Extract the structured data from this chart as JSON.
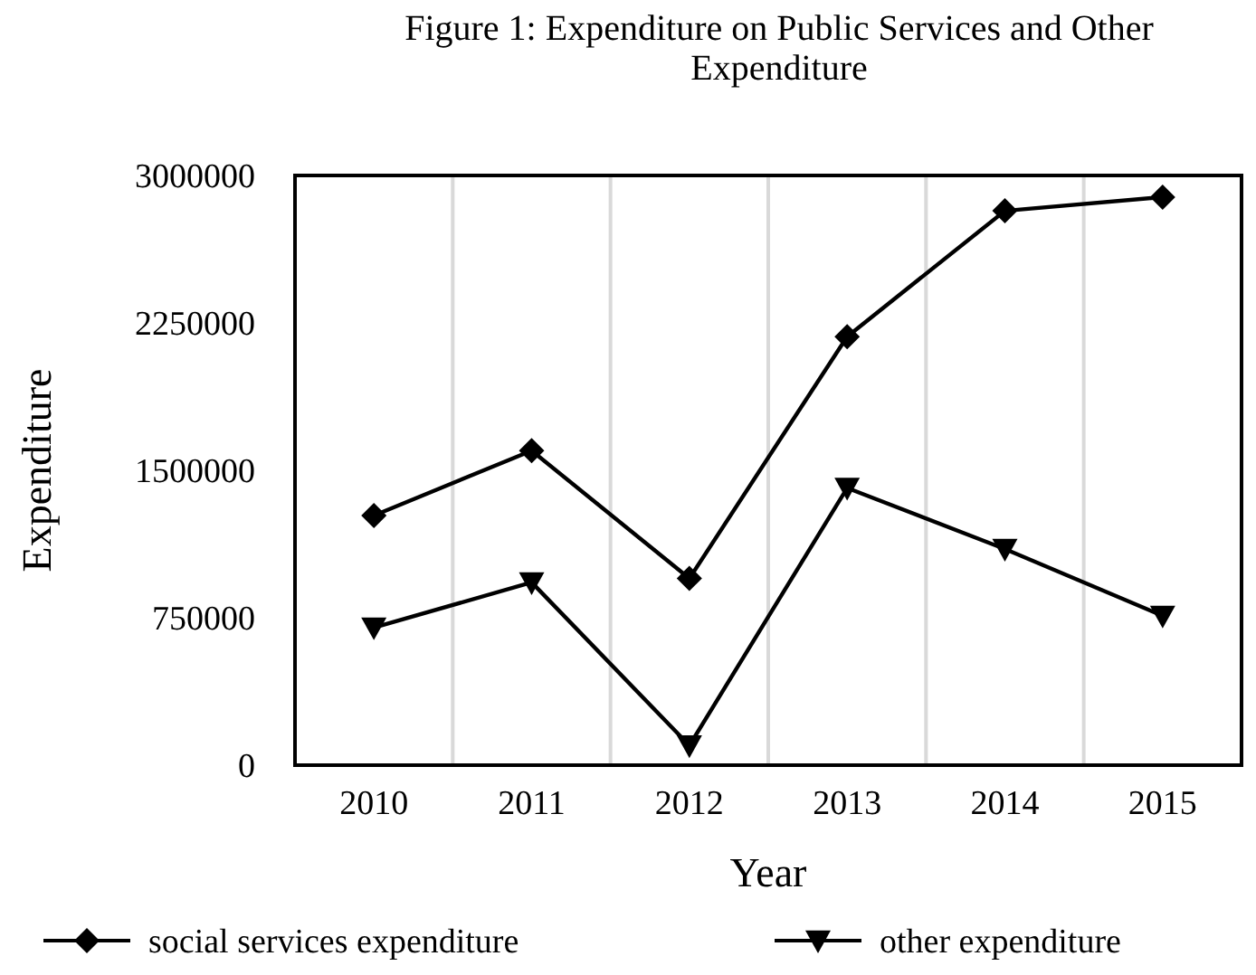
{
  "chart_data": {
    "type": "line",
    "title": "Figure 1: Expenditure on Public Services and Other Expenditure",
    "xlabel": "Year",
    "ylabel": "Expenditure",
    "categories": [
      "2010",
      "2011",
      "2012",
      "2013",
      "2014",
      "2015"
    ],
    "series": [
      {
        "name": "social services expenditure",
        "color": "#000000",
        "marker": "diamond",
        "values": [
          1270000,
          1600000,
          950000,
          2180000,
          2820000,
          2890000
        ]
      },
      {
        "name": "other expenditure",
        "color": "#000000",
        "marker": "triangle",
        "values": [
          700000,
          930000,
          100000,
          1410000,
          1100000,
          760000
        ]
      }
    ],
    "ylim": [
      0,
      3000000
    ],
    "yticks": [
      0,
      750000,
      1500000,
      2250000,
      3000000
    ],
    "grid": "x",
    "legend": "bottom",
    "line_style": "solid"
  }
}
